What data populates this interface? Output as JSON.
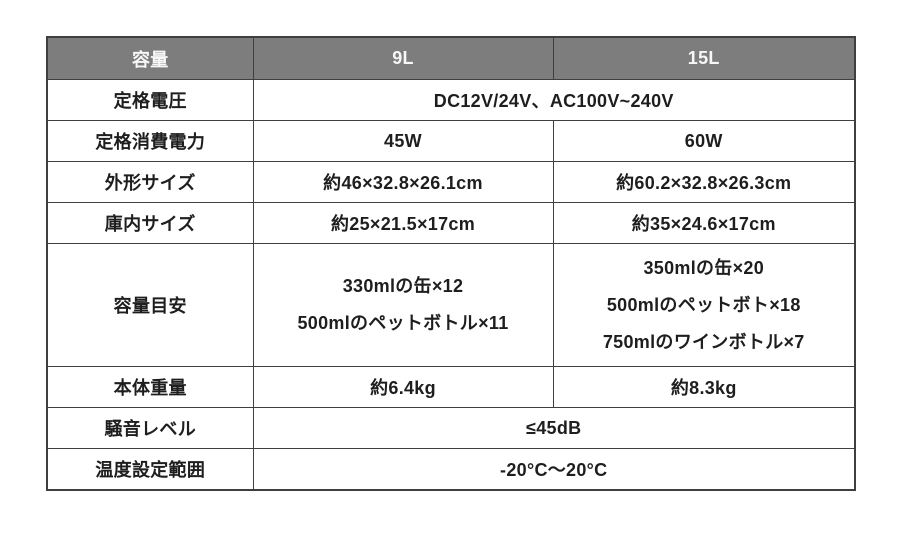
{
  "table": {
    "title_semantic": "product-spec-comparison",
    "colors": {
      "header_bg": "#7d7d7d",
      "header_text": "#f7f7f7",
      "border": "#3f3f3f",
      "body_text": "#1e1e1e",
      "page_bg": "#ffffff"
    },
    "header": {
      "col_label": "容量",
      "col_9l": "9L",
      "col_15l": "15L"
    },
    "rows": {
      "rated_voltage": {
        "label": "定格電圧",
        "value_span": "DC12V/24V、AC100V~240V"
      },
      "rated_power": {
        "label": "定格消費電力",
        "value_9l": "45W",
        "value_15l": "60W"
      },
      "external_size": {
        "label": "外形サイズ",
        "value_9l": "約46×32.8×26.1cm",
        "value_15l": "約60.2×32.8×26.3cm"
      },
      "internal_size": {
        "label": "庫内サイズ",
        "value_9l": "約25×21.5×17cm",
        "value_15l": "約35×24.6×17cm"
      },
      "capacity_guide": {
        "label": "容量目安",
        "value_9l_lines": [
          "330mlの缶×12",
          "500mlのペットボトル×11"
        ],
        "value_15l_lines": [
          "350mlの缶×20",
          "500mlのペットボト×18",
          "750mlのワインボトル×7"
        ]
      },
      "body_weight": {
        "label": "本体重量",
        "value_9l": "約6.4kg",
        "value_15l": "約8.3kg"
      },
      "noise_level": {
        "label": "騒音レベル",
        "value_span": "≤45dB"
      },
      "temp_range": {
        "label": "温度設定範囲",
        "value_span": "-20°C〜20°C"
      }
    }
  }
}
